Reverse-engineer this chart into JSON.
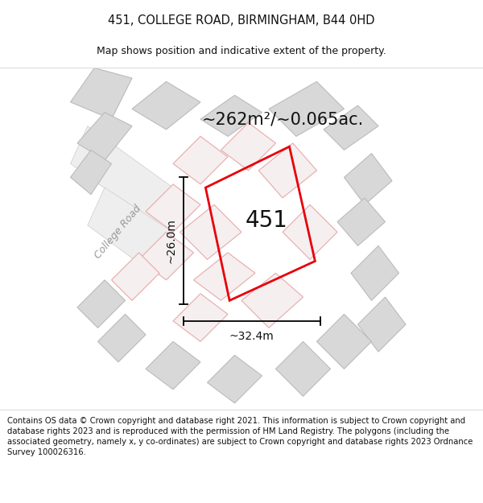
{
  "title_line1": "451, COLLEGE ROAD, BIRMINGHAM, B44 0HD",
  "title_line2": "Map shows position and indicative extent of the property.",
  "footer_text": "Contains OS data © Crown copyright and database right 2021. This information is subject to Crown copyright and database rights 2023 and is reproduced with the permission of HM Land Registry. The polygons (including the associated geometry, namely x, y co-ordinates) are subject to Crown copyright and database rights 2023 Ordnance Survey 100026316.",
  "area_label": "~262m²/~0.065ac.",
  "property_label": "451",
  "dim_vertical": "~26.0m",
  "dim_horizontal": "~32.4m",
  "road_label": "College Road",
  "map_bg": "#ffffff",
  "fig_bg": "#ffffff",
  "property_color": "#e8000a",
  "gray_face": "#d8d8d8",
  "gray_edge": "#bbbbbb",
  "pink_face": "#f5efef",
  "pink_edge": "#e8aaaa",
  "road_face": "#eeeeee",
  "road_edge": "#cccccc",
  "title_fontsize": 10.5,
  "subtitle_fontsize": 9.0,
  "footer_fontsize": 7.2,
  "area_fontsize": 15,
  "prop_label_fontsize": 20,
  "dim_fontsize": 10,
  "road_fontsize": 9
}
